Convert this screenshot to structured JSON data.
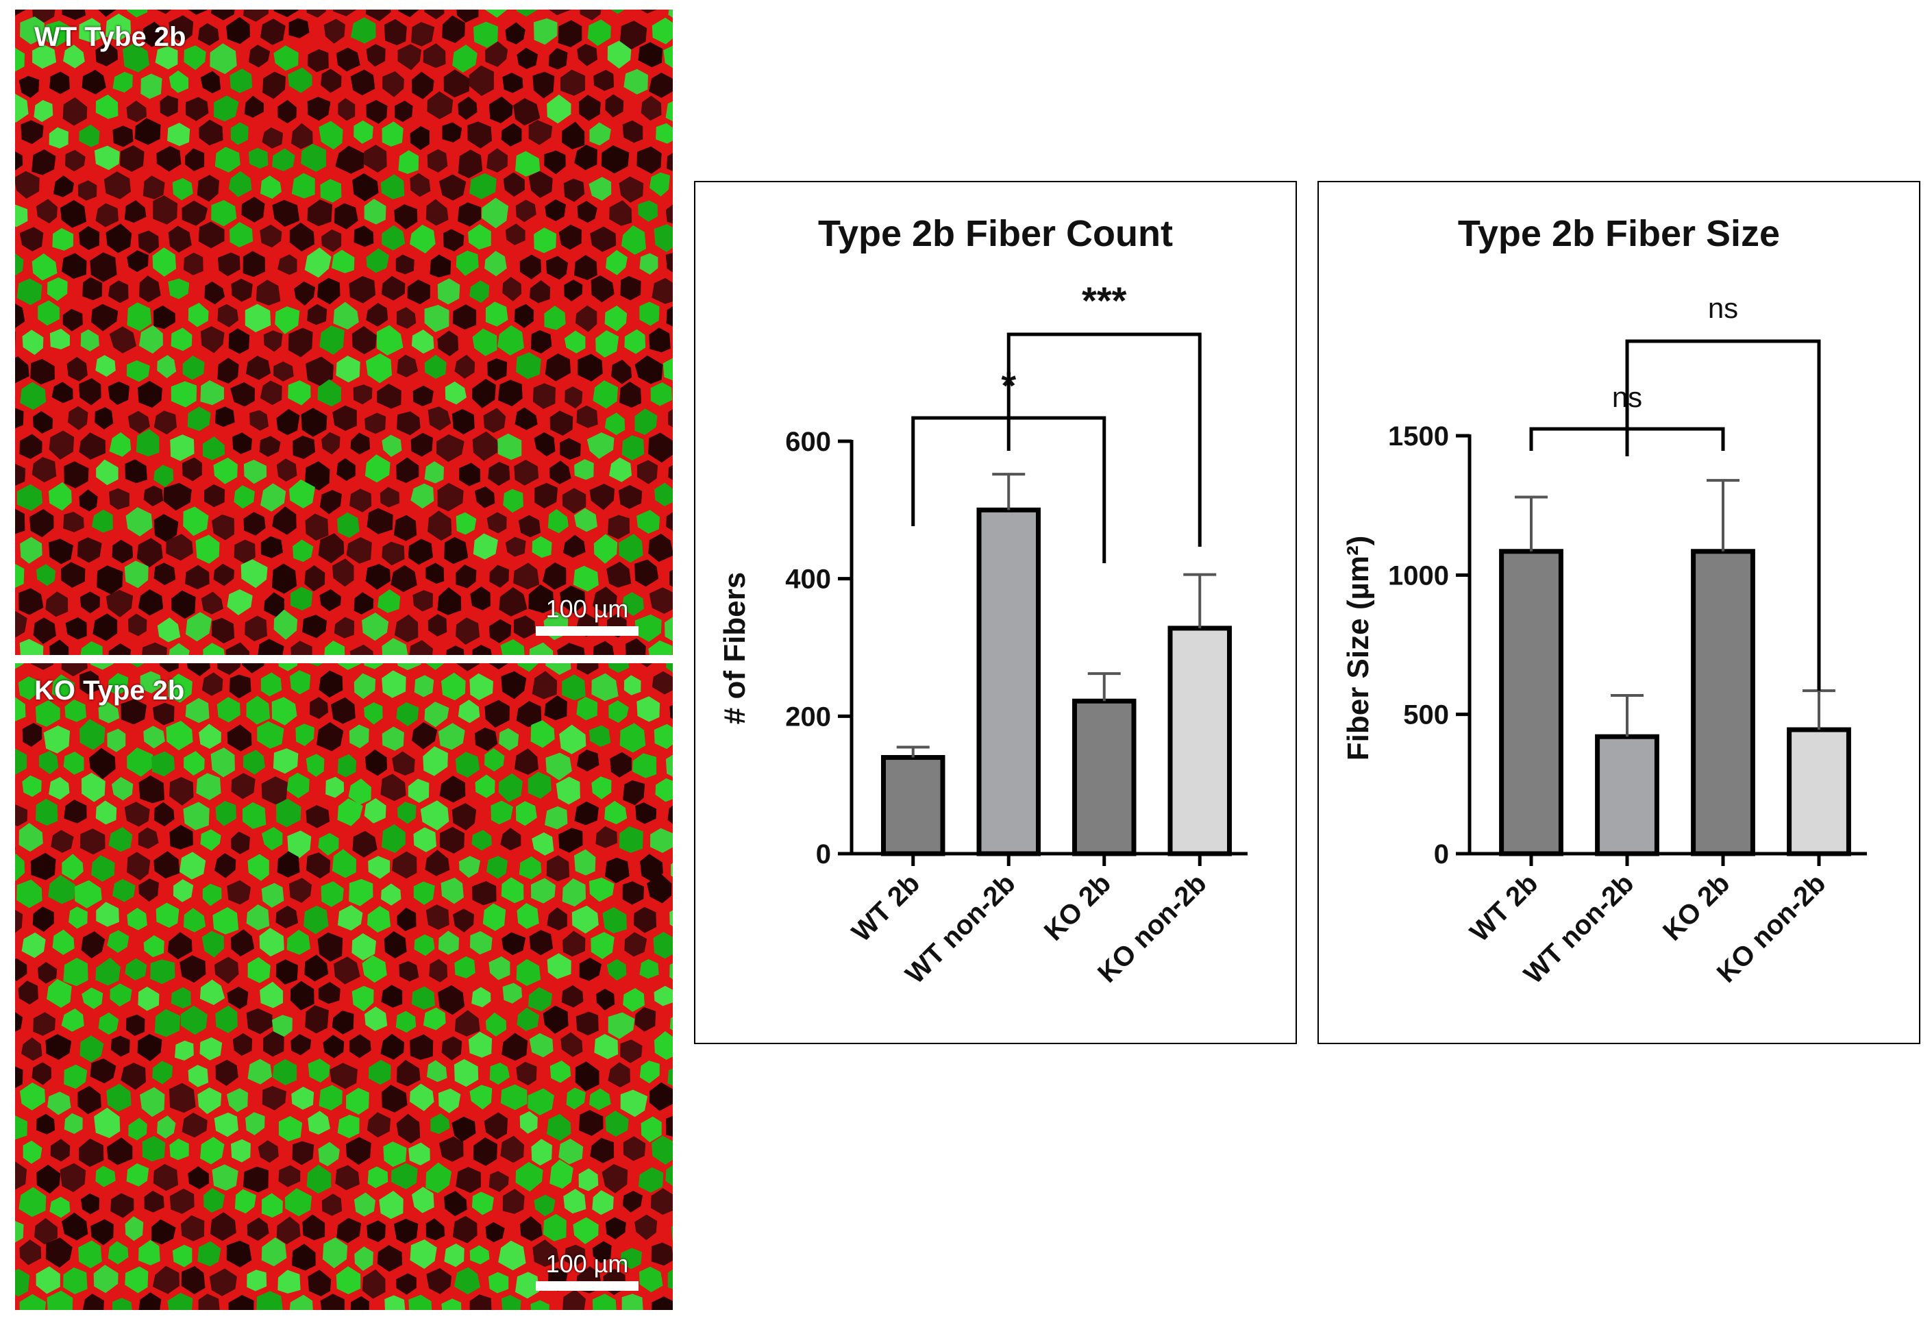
{
  "micrographs": [
    {
      "label": "WT Tybe 2b",
      "scale": "100 µm"
    },
    {
      "label": "KO Type 2b",
      "scale": "100 µm"
    }
  ],
  "colors": {
    "membrane": "#e01515",
    "fiber_green": "#2bd12b",
    "fiber_dark": "#2a0505",
    "bar_dark": "#7f7f7f",
    "bar_mid": "#a5a6aa",
    "bar_light": "#d8d8d8"
  },
  "chart_data": [
    {
      "type": "bar",
      "title": "Type 2b Fiber Count",
      "ylabel": "# of Fibers",
      "ylim": [
        0,
        600
      ],
      "yticks": [
        "0",
        "200",
        "400",
        "600"
      ],
      "categories": [
        "WT 2b",
        "WT non-2b",
        "KO 2b",
        "KO non-2b"
      ],
      "values": [
        140,
        500,
        222,
        328
      ],
      "errors": [
        15,
        52,
        40,
        78
      ],
      "bar_colors": [
        "#7f7f7f",
        "#a5a6aa",
        "#7f7f7f",
        "#d8d8d8"
      ],
      "comparisons": [
        {
          "from": 0,
          "to": 2,
          "label": "*"
        },
        {
          "from": 1,
          "to": 3,
          "label": "***"
        }
      ]
    },
    {
      "type": "bar",
      "title": "Type 2b Fiber Size",
      "ylabel": "Fiber Size (µm²)",
      "ylim": [
        0,
        1500
      ],
      "yticks": [
        "0",
        "500",
        "1000",
        "1500"
      ],
      "categories": [
        "WT 2b",
        "WT non-2b",
        "KO 2b",
        "KO non-2b"
      ],
      "values": [
        1085,
        420,
        1085,
        445
      ],
      "errors": [
        195,
        148,
        255,
        140
      ],
      "bar_colors": [
        "#7f7f7f",
        "#a5a6aa",
        "#7f7f7f",
        "#d8d8d8"
      ],
      "comparisons": [
        {
          "from": 0,
          "to": 2,
          "label": "ns"
        },
        {
          "from": 1,
          "to": 3,
          "label": "ns"
        }
      ]
    }
  ]
}
